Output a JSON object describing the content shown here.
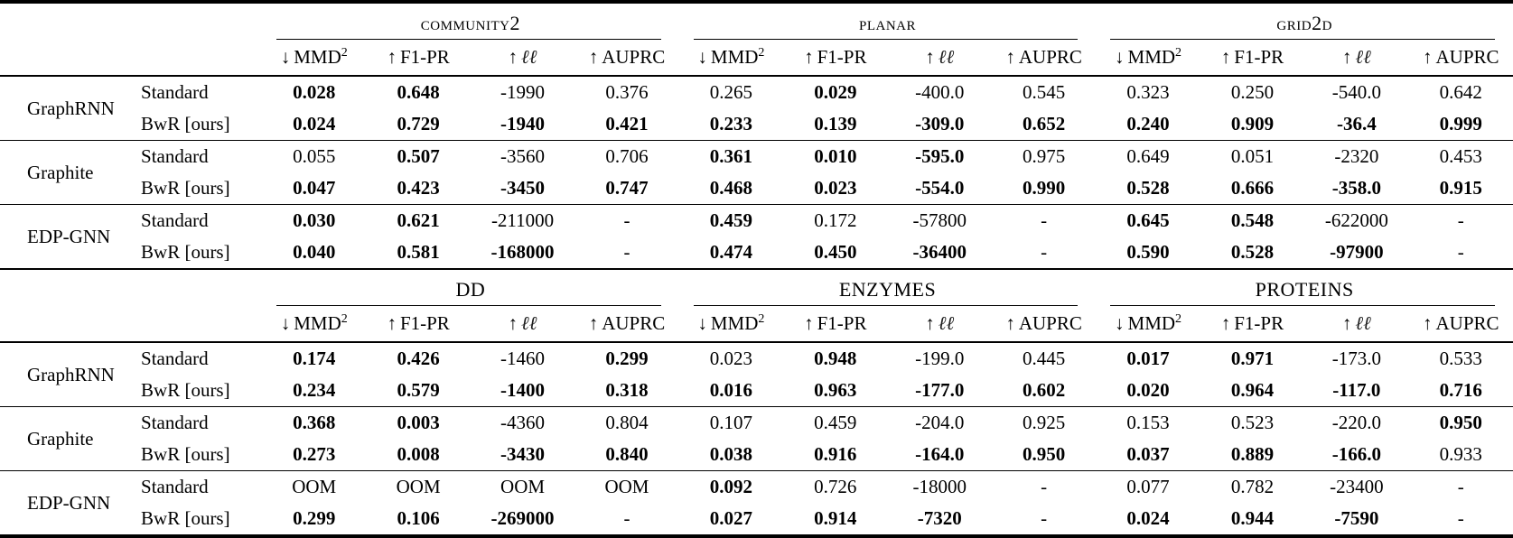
{
  "page": {
    "background": "#ffffff",
    "text_color": "#000000"
  },
  "metric_headers": [
    {
      "arrow": "↓",
      "label": "MMD",
      "sup": "2",
      "italic": false
    },
    {
      "arrow": "↑",
      "label": "F1-PR",
      "sup": "",
      "italic": false
    },
    {
      "arrow": "↑",
      "label": "ℓℓ",
      "sup": "",
      "italic": true
    },
    {
      "arrow": "↑",
      "label": "AUPRC",
      "sup": "",
      "italic": false
    }
  ],
  "tables": [
    {
      "name": "top-results-table",
      "datasets": [
        {
          "label": "community2",
          "smallcaps": true
        },
        {
          "label": "planar",
          "smallcaps": true
        },
        {
          "label": "grid2d",
          "smallcaps": true
        }
      ],
      "row_groups": [
        {
          "model": "GraphRNN",
          "rows": [
            {
              "variant": "Standard",
              "cells": [
                {
                  "v": "0.028",
                  "b": 1
                },
                {
                  "v": "0.648",
                  "b": 1
                },
                {
                  "v": "-1990",
                  "b": 0
                },
                {
                  "v": "0.376",
                  "b": 0
                },
                {
                  "v": "0.265",
                  "b": 0
                },
                {
                  "v": "0.029",
                  "b": 1
                },
                {
                  "v": "-400.0",
                  "b": 0
                },
                {
                  "v": "0.545",
                  "b": 0
                },
                {
                  "v": "0.323",
                  "b": 0
                },
                {
                  "v": "0.250",
                  "b": 0
                },
                {
                  "v": "-540.0",
                  "b": 0
                },
                {
                  "v": "0.642",
                  "b": 0
                }
              ]
            },
            {
              "variant": "BwR [ours]",
              "cells": [
                {
                  "v": "0.024",
                  "b": 1
                },
                {
                  "v": "0.729",
                  "b": 1
                },
                {
                  "v": "-1940",
                  "b": 1
                },
                {
                  "v": "0.421",
                  "b": 1
                },
                {
                  "v": "0.233",
                  "b": 1
                },
                {
                  "v": "0.139",
                  "b": 1
                },
                {
                  "v": "-309.0",
                  "b": 1
                },
                {
                  "v": "0.652",
                  "b": 1
                },
                {
                  "v": "0.240",
                  "b": 1
                },
                {
                  "v": "0.909",
                  "b": 1
                },
                {
                  "v": "-36.4",
                  "b": 1
                },
                {
                  "v": "0.999",
                  "b": 1
                }
              ]
            }
          ]
        },
        {
          "model": "Graphite",
          "rows": [
            {
              "variant": "Standard",
              "cells": [
                {
                  "v": "0.055",
                  "b": 0
                },
                {
                  "v": "0.507",
                  "b": 1
                },
                {
                  "v": "-3560",
                  "b": 0
                },
                {
                  "v": "0.706",
                  "b": 0
                },
                {
                  "v": "0.361",
                  "b": 1
                },
                {
                  "v": "0.010",
                  "b": 1
                },
                {
                  "v": "-595.0",
                  "b": 1
                },
                {
                  "v": "0.975",
                  "b": 0
                },
                {
                  "v": "0.649",
                  "b": 0
                },
                {
                  "v": "0.051",
                  "b": 0
                },
                {
                  "v": "-2320",
                  "b": 0
                },
                {
                  "v": "0.453",
                  "b": 0
                }
              ]
            },
            {
              "variant": "BwR [ours]",
              "cells": [
                {
                  "v": "0.047",
                  "b": 1
                },
                {
                  "v": "0.423",
                  "b": 1
                },
                {
                  "v": "-3450",
                  "b": 1
                },
                {
                  "v": "0.747",
                  "b": 1
                },
                {
                  "v": "0.468",
                  "b": 1
                },
                {
                  "v": "0.023",
                  "b": 1
                },
                {
                  "v": "-554.0",
                  "b": 1
                },
                {
                  "v": "0.990",
                  "b": 1
                },
                {
                  "v": "0.528",
                  "b": 1
                },
                {
                  "v": "0.666",
                  "b": 1
                },
                {
                  "v": "-358.0",
                  "b": 1
                },
                {
                  "v": "0.915",
                  "b": 1
                }
              ]
            }
          ]
        },
        {
          "model": "EDP-GNN",
          "rows": [
            {
              "variant": "Standard",
              "cells": [
                {
                  "v": "0.030",
                  "b": 1
                },
                {
                  "v": "0.621",
                  "b": 1
                },
                {
                  "v": "-211000",
                  "b": 0
                },
                {
                  "v": "-",
                  "b": 0
                },
                {
                  "v": "0.459",
                  "b": 1
                },
                {
                  "v": "0.172",
                  "b": 0
                },
                {
                  "v": "-57800",
                  "b": 0
                },
                {
                  "v": "-",
                  "b": 0
                },
                {
                  "v": "0.645",
                  "b": 1
                },
                {
                  "v": "0.548",
                  "b": 1
                },
                {
                  "v": "-622000",
                  "b": 0
                },
                {
                  "v": "-",
                  "b": 0
                }
              ]
            },
            {
              "variant": "BwR [ours]",
              "cells": [
                {
                  "v": "0.040",
                  "b": 1
                },
                {
                  "v": "0.581",
                  "b": 1
                },
                {
                  "v": "-168000",
                  "b": 1
                },
                {
                  "v": "-",
                  "b": 0
                },
                {
                  "v": "0.474",
                  "b": 1
                },
                {
                  "v": "0.450",
                  "b": 1
                },
                {
                  "v": "-36400",
                  "b": 1
                },
                {
                  "v": "-",
                  "b": 0
                },
                {
                  "v": "0.590",
                  "b": 1
                },
                {
                  "v": "0.528",
                  "b": 1
                },
                {
                  "v": "-97900",
                  "b": 1
                },
                {
                  "v": "-",
                  "b": 0
                }
              ]
            }
          ]
        }
      ]
    },
    {
      "name": "bottom-results-table",
      "datasets": [
        {
          "label": "DD",
          "smallcaps": false
        },
        {
          "label": "ENZYMES",
          "smallcaps": false
        },
        {
          "label": "PROTEINS",
          "smallcaps": false
        }
      ],
      "row_groups": [
        {
          "model": "GraphRNN",
          "rows": [
            {
              "variant": "Standard",
              "cells": [
                {
                  "v": "0.174",
                  "b": 1
                },
                {
                  "v": "0.426",
                  "b": 1
                },
                {
                  "v": "-1460",
                  "b": 0
                },
                {
                  "v": "0.299",
                  "b": 1
                },
                {
                  "v": "0.023",
                  "b": 0
                },
                {
                  "v": "0.948",
                  "b": 1
                },
                {
                  "v": "-199.0",
                  "b": 0
                },
                {
                  "v": "0.445",
                  "b": 0
                },
                {
                  "v": "0.017",
                  "b": 1
                },
                {
                  "v": "0.971",
                  "b": 1
                },
                {
                  "v": "-173.0",
                  "b": 0
                },
                {
                  "v": "0.533",
                  "b": 0
                }
              ]
            },
            {
              "variant": "BwR [ours]",
              "cells": [
                {
                  "v": "0.234",
                  "b": 1
                },
                {
                  "v": "0.579",
                  "b": 1
                },
                {
                  "v": "-1400",
                  "b": 1
                },
                {
                  "v": "0.318",
                  "b": 1
                },
                {
                  "v": "0.016",
                  "b": 1
                },
                {
                  "v": "0.963",
                  "b": 1
                },
                {
                  "v": "-177.0",
                  "b": 1
                },
                {
                  "v": "0.602",
                  "b": 1
                },
                {
                  "v": "0.020",
                  "b": 1
                },
                {
                  "v": "0.964",
                  "b": 1
                },
                {
                  "v": "-117.0",
                  "b": 1
                },
                {
                  "v": "0.716",
                  "b": 1
                }
              ]
            }
          ]
        },
        {
          "model": "Graphite",
          "rows": [
            {
              "variant": "Standard",
              "cells": [
                {
                  "v": "0.368",
                  "b": 1
                },
                {
                  "v": "0.003",
                  "b": 1
                },
                {
                  "v": "-4360",
                  "b": 0
                },
                {
                  "v": "0.804",
                  "b": 0
                },
                {
                  "v": "0.107",
                  "b": 0
                },
                {
                  "v": "0.459",
                  "b": 0
                },
                {
                  "v": "-204.0",
                  "b": 0
                },
                {
                  "v": "0.925",
                  "b": 0
                },
                {
                  "v": "0.153",
                  "b": 0
                },
                {
                  "v": "0.523",
                  "b": 0
                },
                {
                  "v": "-220.0",
                  "b": 0
                },
                {
                  "v": "0.950",
                  "b": 1
                }
              ]
            },
            {
              "variant": "BwR [ours]",
              "cells": [
                {
                  "v": "0.273",
                  "b": 1
                },
                {
                  "v": "0.008",
                  "b": 1
                },
                {
                  "v": "-3430",
                  "b": 1
                },
                {
                  "v": "0.840",
                  "b": 1
                },
                {
                  "v": "0.038",
                  "b": 1
                },
                {
                  "v": "0.916",
                  "b": 1
                },
                {
                  "v": "-164.0",
                  "b": 1
                },
                {
                  "v": "0.950",
                  "b": 1
                },
                {
                  "v": "0.037",
                  "b": 1
                },
                {
                  "v": "0.889",
                  "b": 1
                },
                {
                  "v": "-166.0",
                  "b": 1
                },
                {
                  "v": "0.933",
                  "b": 0
                }
              ]
            }
          ]
        },
        {
          "model": "EDP-GNN",
          "rows": [
            {
              "variant": "Standard",
              "cells": [
                {
                  "v": "OOM",
                  "b": 0
                },
                {
                  "v": "OOM",
                  "b": 0
                },
                {
                  "v": "OOM",
                  "b": 0
                },
                {
                  "v": "OOM",
                  "b": 0
                },
                {
                  "v": "0.092",
                  "b": 1
                },
                {
                  "v": "0.726",
                  "b": 0
                },
                {
                  "v": "-18000",
                  "b": 0
                },
                {
                  "v": "-",
                  "b": 0
                },
                {
                  "v": "0.077",
                  "b": 0
                },
                {
                  "v": "0.782",
                  "b": 0
                },
                {
                  "v": "-23400",
                  "b": 0
                },
                {
                  "v": "-",
                  "b": 0
                }
              ]
            },
            {
              "variant": "BwR [ours]",
              "cells": [
                {
                  "v": "0.299",
                  "b": 1
                },
                {
                  "v": "0.106",
                  "b": 1
                },
                {
                  "v": "-269000",
                  "b": 1
                },
                {
                  "v": "-",
                  "b": 0
                },
                {
                  "v": "0.027",
                  "b": 1
                },
                {
                  "v": "0.914",
                  "b": 1
                },
                {
                  "v": "-7320",
                  "b": 1
                },
                {
                  "v": "-",
                  "b": 0
                },
                {
                  "v": "0.024",
                  "b": 1
                },
                {
                  "v": "0.944",
                  "b": 1
                },
                {
                  "v": "-7590",
                  "b": 1
                },
                {
                  "v": "-",
                  "b": 0
                }
              ]
            }
          ]
        }
      ]
    }
  ]
}
